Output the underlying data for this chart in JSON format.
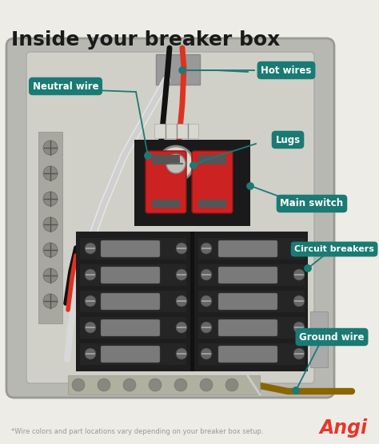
{
  "title": "Inside your breaker box",
  "title_fontsize": 18,
  "title_fontweight": "bold",
  "title_color": "#1a1a1a",
  "bg_color": "#eeece6",
  "footnote": "*Wire colors and part locations vary depending on your breaker box setup.",
  "footnote_color": "#999999",
  "footnote_fontsize": 6,
  "brand": "Angi",
  "brand_color": "#e8362a",
  "brand_fontsize": 17,
  "label_bg_color": "#1a7a74",
  "label_text_color": "#ffffff",
  "box_outer_color": "#b8b8b2",
  "box_inner_color": "#d0d0c8",
  "box_panel_color": "#c4c4bc",
  "screw_strip_color": "#a8a8a0",
  "main_sw_color": "#222222",
  "cb_panel_color": "#1e1e1e",
  "cb_row_color": "#2a2a2a",
  "toggle_color": "#909090",
  "switch_red": "#cc2222",
  "wire_black": "#111111",
  "wire_red": "#dd3322",
  "wire_white": "#e8e8e8",
  "wire_ground": "#8B6500",
  "conduit_color": "#888888",
  "bus_color": "#b0b0a0",
  "teal_line": "#1a7a74"
}
